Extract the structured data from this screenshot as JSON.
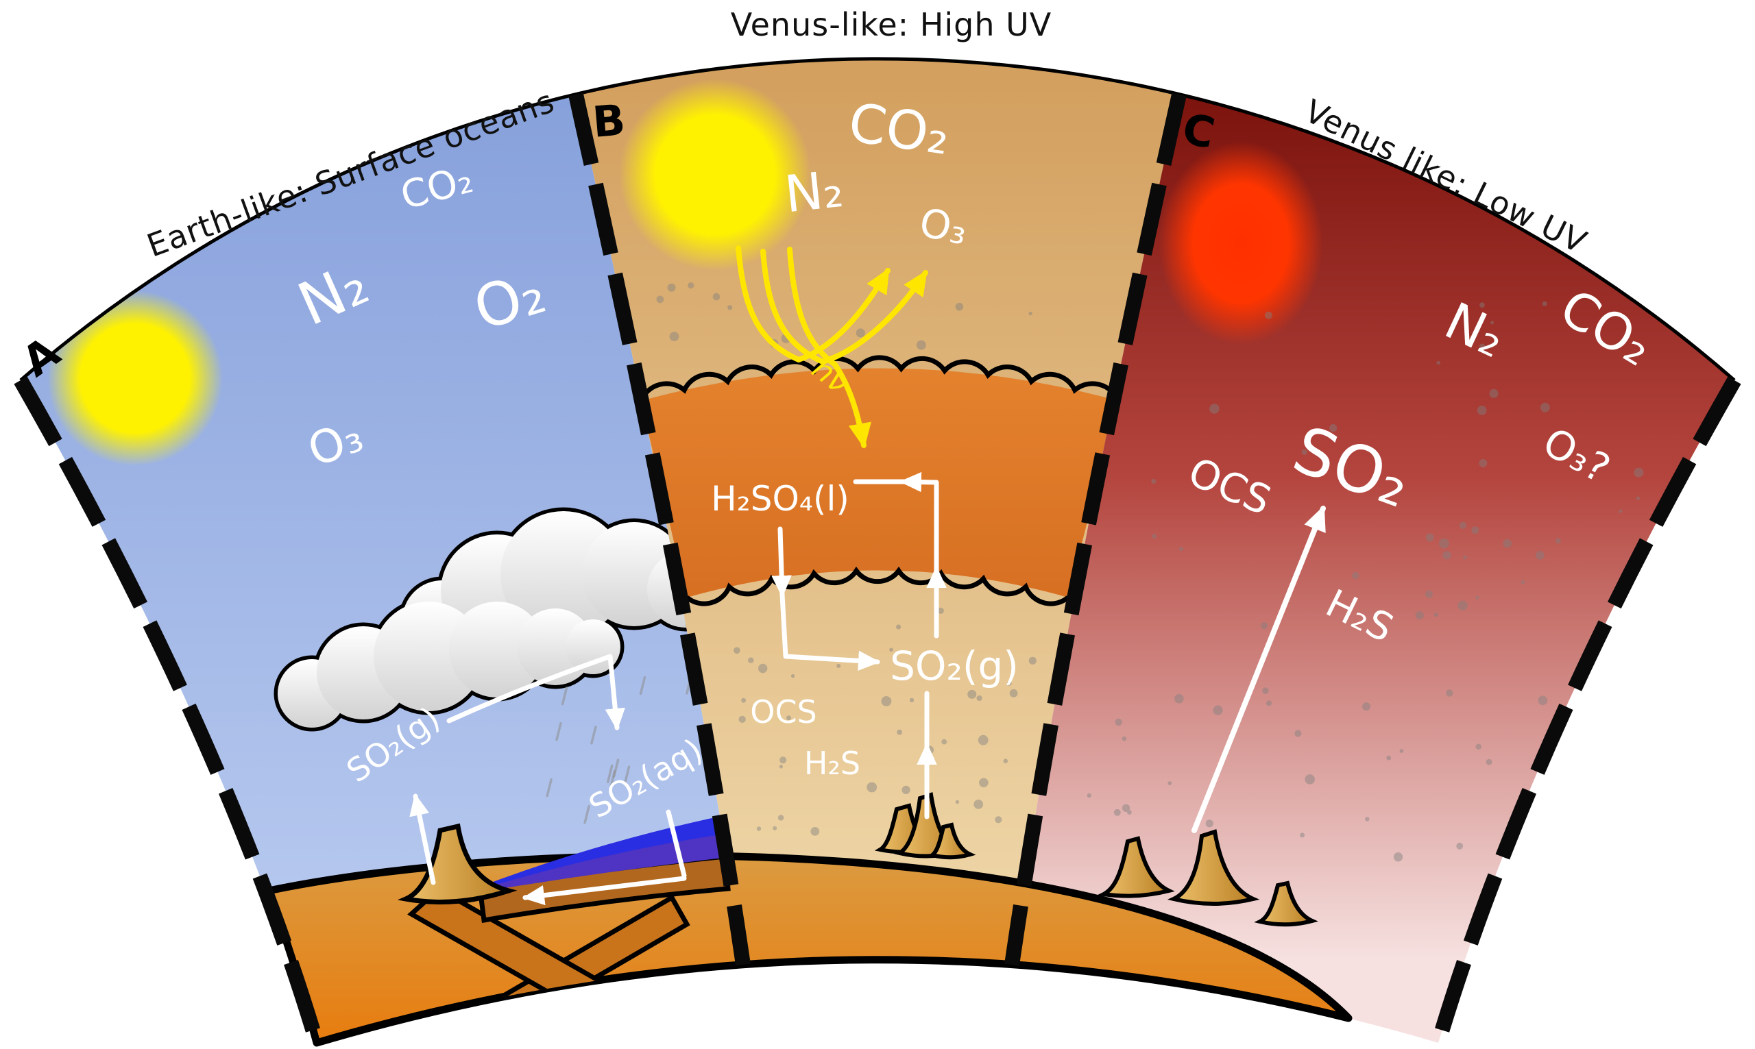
{
  "figure": {
    "description": "Three-wedge planetary atmosphere comparison diagram",
    "panels": [
      {
        "id": "a",
        "letter": "A",
        "title": "Earth-like: Surface oceans",
        "molecules": {
          "co2": "CO₂",
          "n2": "N₂",
          "o2": "O₂",
          "o3": "O₃",
          "so2_gas": "SO₂(g)",
          "so2_aqueous": "SO₂(aq)"
        }
      },
      {
        "id": "b",
        "letter": "B",
        "title": "Venus-like: High UV",
        "molecules": {
          "co2": "CO₂",
          "n2": "N₂",
          "o3": "O₃",
          "photon": "hν",
          "h2so4_liquid": "H₂SO₄(l)",
          "so2_gas": "SO₂(g)",
          "ocs": "OCS",
          "h2s": "H₂S"
        }
      },
      {
        "id": "c",
        "letter": "C",
        "title": "Venus like: Low UV",
        "molecules": {
          "n2": "N₂",
          "co2": "CO₂",
          "o3_question": "O₃?",
          "ocs": "OCS",
          "so2": "SO₂",
          "h2s": "H₂S"
        }
      }
    ],
    "palette": {
      "sky_earth": "#8BA3DD",
      "sky_high_uv": "#D8A765",
      "sky_low_uv_top": "#7A110B",
      "sky_low_uv_bottom": "#F4DEDD",
      "sun_yellow": "#FFF200",
      "sun_red": "#FF3000",
      "uv_ray": "#FFE600",
      "cloud_deck_orange": "#E07C2B",
      "mantle_orange": "#E87808",
      "crust_brown": "#B2671E",
      "ocean_blue": "#2A2EE2",
      "ocean_deep": "#4F33C2",
      "label_white": "#FFFFFF"
    }
  }
}
